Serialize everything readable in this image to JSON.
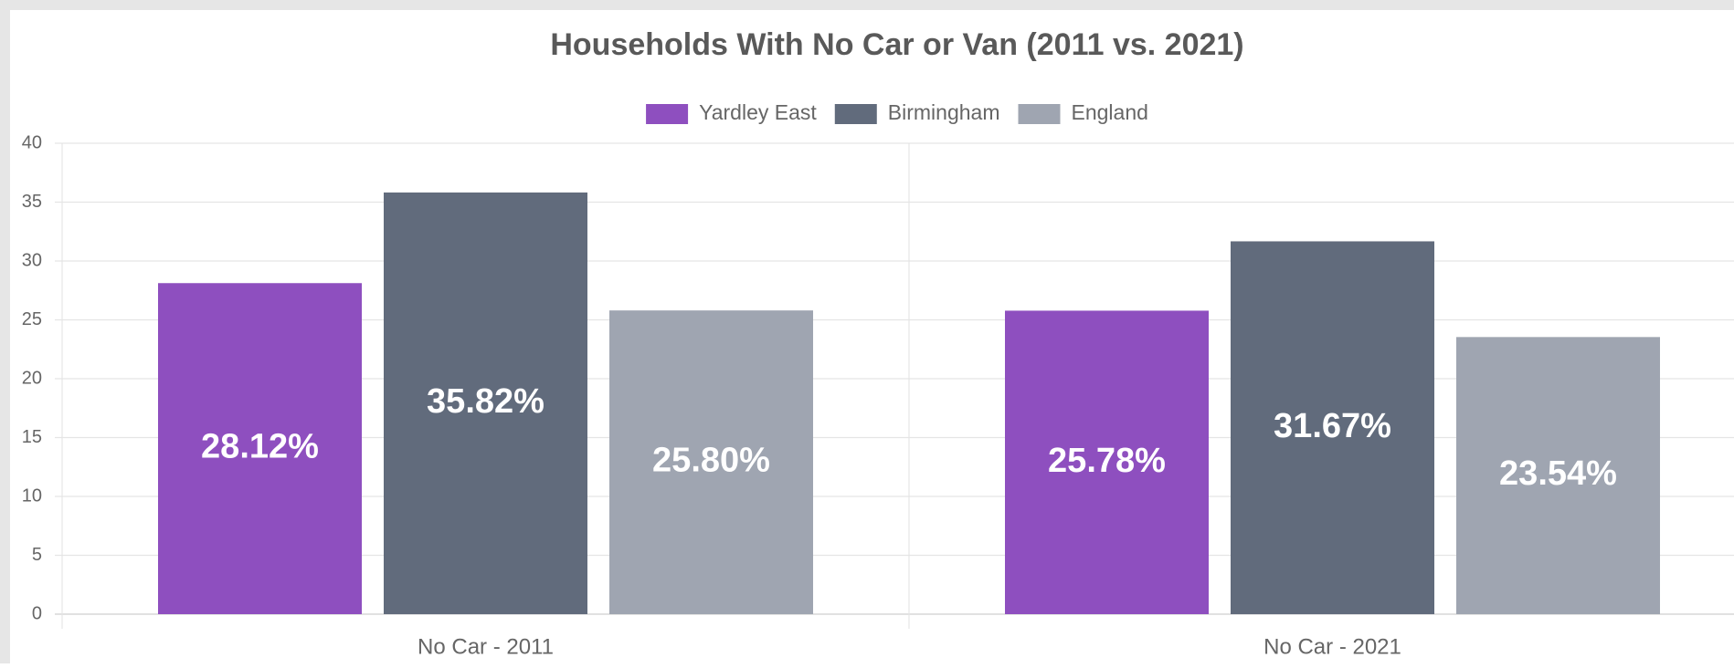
{
  "chart_data": {
    "type": "bar",
    "title": "Households With No Car or Van (2011 vs. 2021)",
    "categories": [
      "No Car - 2011",
      "No Car - 2021"
    ],
    "series": [
      {
        "name": "Yardley East",
        "color": "#8e4fbf",
        "values": [
          28.12,
          25.78
        ],
        "value_labels": [
          "28.12%",
          "25.78%"
        ]
      },
      {
        "name": "Birmingham",
        "color": "#616b7c",
        "values": [
          35.82,
          31.67
        ],
        "value_labels": [
          "35.82%",
          "31.67%"
        ]
      },
      {
        "name": "England",
        "color": "#9fa5b1",
        "values": [
          25.8,
          23.54
        ],
        "value_labels": [
          "25.80%",
          "23.54%"
        ]
      }
    ],
    "ylim": [
      0,
      40
    ],
    "yticks": [
      0,
      5,
      10,
      15,
      20,
      25,
      30,
      35,
      40
    ],
    "grid": true,
    "legend": "top"
  }
}
